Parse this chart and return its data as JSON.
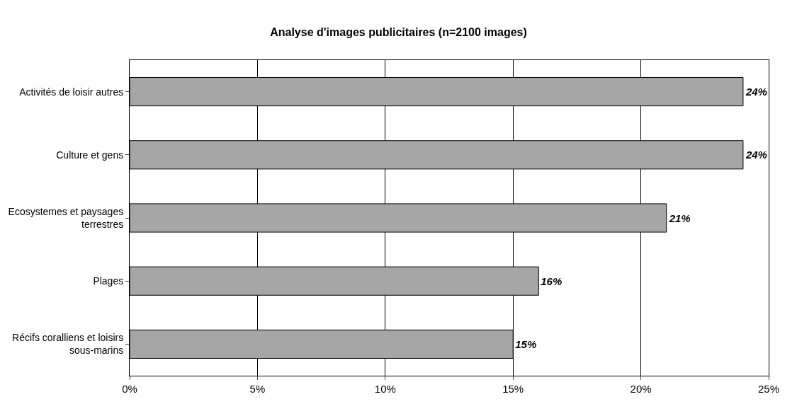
{
  "chart_data": {
    "type": "bar",
    "orientation": "horizontal",
    "title": "Analyse d'images publicitaires (n=2100 images)",
    "categories": [
      "Activités de loisir autres",
      "Culture et gens",
      "Ecosystemes et paysages terrestres",
      "Plages",
      "Récifs coralliens et loisirs sous-marins"
    ],
    "values": [
      24,
      24,
      21,
      16,
      15
    ],
    "value_labels": [
      "24%",
      "24%",
      "21%",
      "16%",
      "15%"
    ],
    "color": "#a6a6a6",
    "xlim": [
      0,
      25
    ],
    "xticks": [
      {
        "value": 0,
        "label": "0%"
      },
      {
        "value": 5,
        "label": "5%"
      },
      {
        "value": 10,
        "label": "10%"
      },
      {
        "value": 15,
        "label": "15%"
      },
      {
        "value": 20,
        "label": "20%"
      },
      {
        "value": 25,
        "label": "25%"
      }
    ],
    "grid": "x"
  }
}
